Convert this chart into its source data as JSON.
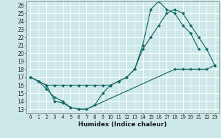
{
  "xlabel": "Humidex (Indice chaleur)",
  "background_color": "#cde8e8",
  "grid_color": "#b8d8d8",
  "line_color": "#1a6b6b",
  "xlim": [
    -0.5,
    23.5
  ],
  "ylim": [
    12.5,
    26.5
  ],
  "xticks": [
    0,
    1,
    2,
    3,
    4,
    5,
    6,
    7,
    8,
    9,
    10,
    11,
    12,
    13,
    14,
    15,
    16,
    17,
    18,
    19,
    20,
    21,
    22,
    23
  ],
  "yticks": [
    13,
    14,
    15,
    16,
    17,
    18,
    19,
    20,
    21,
    22,
    23,
    24,
    25,
    26
  ],
  "series": [
    {
      "x": [
        0,
        1,
        2,
        3,
        4,
        5,
        6,
        7,
        8,
        9,
        10,
        11,
        12,
        13,
        14,
        15,
        16,
        17,
        18,
        19,
        20,
        21
      ],
      "y": [
        17.0,
        16.5,
        16.0,
        14.0,
        13.8,
        13.2,
        13.0,
        13.0,
        13.5,
        15.0,
        16.0,
        16.5,
        17.0,
        18.0,
        21.0,
        25.5,
        26.5,
        25.5,
        25.0,
        23.5,
        22.5,
        20.5
      ]
    },
    {
      "x": [
        0,
        1,
        2,
        3,
        4,
        5,
        6,
        7,
        8,
        9,
        10,
        11,
        12,
        13,
        14,
        15,
        16,
        17,
        18,
        19,
        20,
        21,
        22,
        23
      ],
      "y": [
        17.0,
        16.5,
        16.0,
        16.0,
        16.0,
        16.0,
        16.0,
        16.0,
        16.0,
        16.0,
        16.0,
        16.5,
        17.0,
        18.0,
        20.5,
        22.0,
        23.5,
        25.0,
        25.5,
        25.0,
        23.5,
        22.0,
        20.5,
        18.5
      ]
    },
    {
      "x": [
        0,
        1,
        2,
        3,
        4,
        5,
        6,
        7,
        18,
        19,
        20,
        21,
        22,
        23
      ],
      "y": [
        17.0,
        16.5,
        15.5,
        14.5,
        14.0,
        13.2,
        13.0,
        13.0,
        18.0,
        18.0,
        18.0,
        18.0,
        18.0,
        18.5
      ]
    }
  ]
}
